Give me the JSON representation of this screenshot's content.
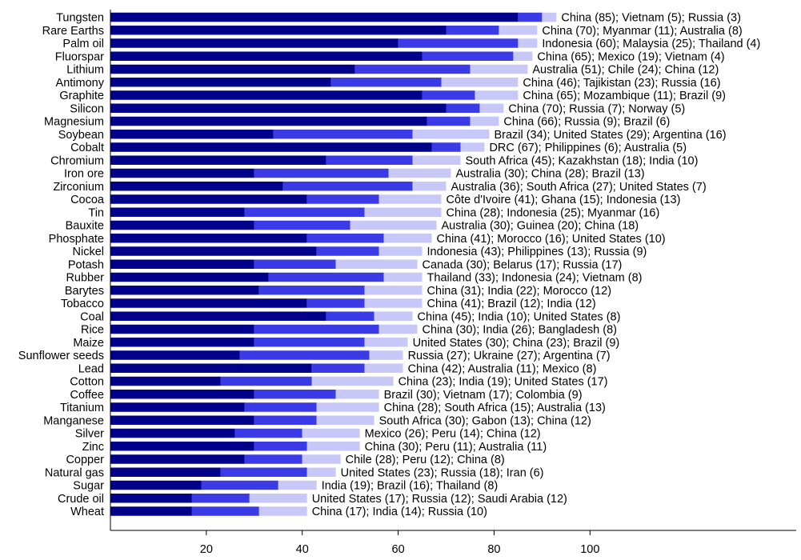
{
  "chart_data": {
    "type": "bar",
    "orientation": "horizontal",
    "stacked": true,
    "title": "",
    "xlabel": "",
    "ylabel": "",
    "xlim": [
      0,
      143
    ],
    "xticks": [
      20,
      40,
      60,
      80,
      100
    ],
    "grid": false,
    "colors": [
      "#00008b",
      "#3a3ae6",
      "#c8c8f8"
    ],
    "categories": [
      "Tungsten",
      "Rare Earths",
      "Palm oil",
      "Fluorspar",
      "Lithium",
      "Antimony",
      "Graphite",
      "Silicon",
      "Magnesium",
      "Soybean",
      "Cobalt",
      "Chromium",
      "Iron ore",
      "Zirconium",
      "Cocoa",
      "Tin",
      "Bauxite",
      "Phosphate",
      "Nickel",
      "Potash",
      "Rubber",
      "Barytes",
      "Tobacco",
      "Coal",
      "Rice",
      "Maize",
      "Sunflower seeds",
      "Lead",
      "Cotton",
      "Coffee",
      "Titanium",
      "Manganese",
      "Silver",
      "Zinc",
      "Copper",
      "Natural gas",
      "Sugar",
      "Crude oil",
      "Wheat"
    ],
    "series": [
      {
        "values": [
          85,
          70,
          60,
          65,
          51,
          46,
          65,
          70,
          66,
          34,
          67,
          45,
          30,
          36,
          41,
          28,
          30,
          41,
          43,
          30,
          33,
          31,
          41,
          45,
          30,
          30,
          27,
          42,
          23,
          30,
          28,
          30,
          26,
          30,
          28,
          23,
          19,
          17,
          17
        ]
      },
      {
        "values": [
          5,
          11,
          25,
          19,
          24,
          23,
          11,
          7,
          9,
          29,
          6,
          18,
          28,
          27,
          15,
          25,
          20,
          16,
          13,
          17,
          24,
          22,
          12,
          10,
          26,
          23,
          27,
          11,
          19,
          17,
          15,
          13,
          14,
          11,
          12,
          18,
          16,
          12,
          14
        ]
      },
      {
        "values": [
          3,
          8,
          4,
          4,
          12,
          16,
          9,
          5,
          6,
          16,
          5,
          10,
          13,
          7,
          13,
          16,
          18,
          10,
          9,
          17,
          8,
          12,
          12,
          8,
          8,
          9,
          7,
          8,
          17,
          9,
          13,
          12,
          12,
          11,
          8,
          6,
          8,
          12,
          10
        ]
      }
    ],
    "annotations": [
      "China (85); Vietnam (5); Russia (3)",
      "China (70); Myanmar (11); Australia (8)",
      "Indonesia (60); Malaysia (25); Thailand (4)",
      "China (65); Mexico (19); Vietnam (4)",
      "Australia (51); Chile (24); China (12)",
      "China (46); Tajikistan (23); Russia (16)",
      "China (65); Mozambique (11); Brazil (9)",
      "China (70); Russia (7); Norway (5)",
      "China (66); Russia (9); Brazil (6)",
      "Brazil (34); United States (29); Argentina (16)",
      "DRC (67); Philippines (6); Australia (5)",
      "South Africa (45); Kazakhstan (18); India (10)",
      "Australia (30); China (28); Brazil (13)",
      "Australia (36); South Africa (27); United States (7)",
      "Côte d'Ivoire (41); Ghana (15); Indonesia (13)",
      "China (28); Indonesia (25); Myanmar (16)",
      "Australia (30); Guinea (20); China (18)",
      "China (41); Morocco (16); United States (10)",
      "Indonesia (43); Philippines (13); Russia (9)",
      "Canada (30); Belarus (17); Russia (17)",
      "Thailand (33); Indonesia (24); Vietnam (8)",
      "China (31); India (22); Morocco (12)",
      "China (41); Brazil (12); India (12)",
      "China (45); India (10); United States (8)",
      "China (30); India (26); Bangladesh (8)",
      "United States (30); China (23); Brazil (9)",
      "Russia (27); Ukraine (27); Argentina (7)",
      "China (42); Australia (11); Mexico (8)",
      "China (23); India (19); United States (17)",
      "Brazil (30); Vietnam (17); Colombia (9)",
      "China (28); South Africa (15); Australia (13)",
      "South Africa (30); Gabon (13); China (12)",
      "Mexico (26); Peru (14); China (12)",
      "China (30); Peru (11); Australia (11)",
      "Chile (28); Peru (12); China (8)",
      "United States (23); Russia (18); Iran (6)",
      "India (19); Brazil (16); Thailand (8)",
      "United States (17); Russia (12); Saudi Arabia (12)",
      "China (17); India (14); Russia (10)"
    ]
  }
}
